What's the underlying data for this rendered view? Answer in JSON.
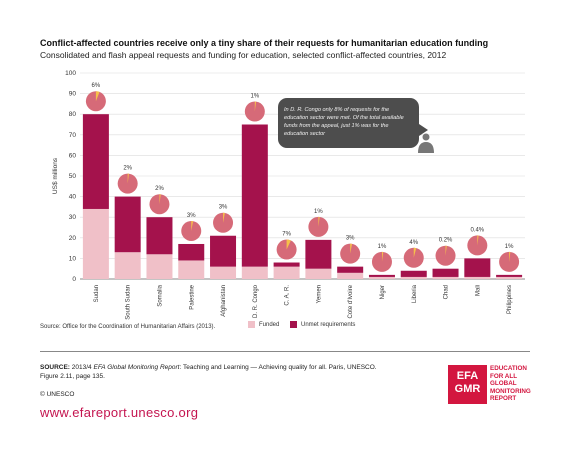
{
  "title": "Conflict-affected countries receive only a tiny share of their requests for humanitarian education funding",
  "subtitle": "Consolidated and flash appeal requests and funding for education, selected conflict-affected countries, 2012",
  "chart_source": {
    "prefix": "Source: ",
    "text": "Office for the Coordination of Humanitarian Affairs (2013)."
  },
  "callout": "In D. R. Congo only 8% of requests for the education sector were met. Of the total available funds from the appeal, just 1% was for the education sector",
  "chart_data": {
    "type": "bar",
    "stacked": true,
    "ylabel": "US$ millions",
    "ylim": [
      0,
      100
    ],
    "yticks": [
      0,
      10,
      20,
      30,
      40,
      50,
      60,
      70,
      80,
      90,
      100
    ],
    "categories": [
      "Sudan",
      "South Sudan",
      "Somalia",
      "Palestine",
      "Afghanistan",
      "D. R. Congo",
      "C. A. R.",
      "Yemen",
      "Cote d'Ivoire",
      "Niger",
      "Liberia",
      "Chad",
      "Mali",
      "Philippines"
    ],
    "series": [
      {
        "name": "Funded",
        "color": "#f0c0c8",
        "values": [
          34,
          13,
          12,
          9,
          6,
          6,
          6,
          5,
          3,
          1,
          1,
          1,
          1,
          1
        ]
      },
      {
        "name": "Unmet requirements",
        "color": "#a4124c",
        "values": [
          46,
          27,
          18,
          8,
          15,
          69,
          2,
          14,
          3,
          1,
          3,
          4,
          9,
          1
        ]
      }
    ],
    "annotations": [
      "6%",
      "2%",
      "2%",
      "3%",
      "3%",
      "1%",
      "7%",
      "1%",
      "3%",
      "1%",
      "4%",
      "0.2%",
      "0.4%",
      "1%"
    ],
    "annotation_share": [
      0.06,
      0.02,
      0.02,
      0.03,
      0.03,
      0.01,
      0.07,
      0.01,
      0.03,
      0.01,
      0.04,
      0.002,
      0.004,
      0.01
    ],
    "legend": "bottom",
    "grid": true
  },
  "footer": {
    "source_label": "SOURCE:",
    "source_ref": " 2013/4 ",
    "report_title": "EFA Global Monitoring Report",
    "report_rest": ": Teaching and Learning — Achieving quality for all. Paris, UNESCO.",
    "figure_ref": "Figure 2.11, page 135.",
    "copyright": "© UNESCO",
    "website": "www.efareport.unesco.org"
  },
  "logo": {
    "mark_line1": "EFA",
    "mark_line2": "GMR",
    "lines": [
      "EDUCATION",
      "FOR ALL",
      "GLOBAL",
      "MONITORING",
      "REPORT"
    ]
  },
  "colors": {
    "funded": "#f0c0c8",
    "unmet": "#a4124c",
    "bubble": "#d66a78",
    "wedge": "#f6c04a",
    "callout": "#4d4d4d",
    "website": "#c4144f"
  }
}
